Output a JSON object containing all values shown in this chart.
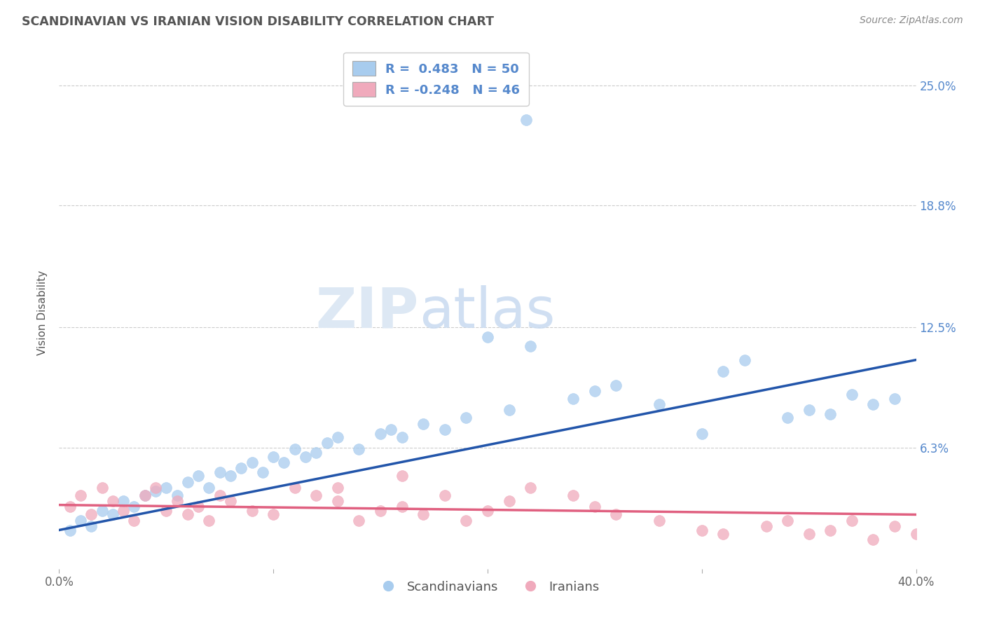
{
  "title": "SCANDINAVIAN VS IRANIAN VISION DISABILITY CORRELATION CHART",
  "source": "Source: ZipAtlas.com",
  "ylabel": "Vision Disability",
  "xlim": [
    0.0,
    0.4
  ],
  "ylim": [
    0.0,
    0.265
  ],
  "xticks": [
    0.0,
    0.1,
    0.2,
    0.3,
    0.4
  ],
  "xtick_labels": [
    "0.0%",
    "",
    "",
    "",
    "40.0%"
  ],
  "yticks_right": [
    0.0,
    0.0625,
    0.125,
    0.188,
    0.25
  ],
  "ytick_labels_right": [
    "",
    "6.3%",
    "12.5%",
    "18.8%",
    "25.0%"
  ],
  "blue_color": "#A8CCEE",
  "pink_color": "#F0AABC",
  "blue_line_color": "#2255AA",
  "pink_line_color": "#E06080",
  "R_blue": 0.483,
  "N_blue": 50,
  "R_pink": -0.248,
  "N_pink": 46,
  "legend_label_blue": "Scandinavians",
  "legend_label_pink": "Iranians",
  "watermark_zip": "ZIP",
  "watermark_atlas": "atlas",
  "background_color": "#ffffff",
  "grid_color": "#cccccc",
  "title_color": "#555555",
  "axis_label_color": "#5588cc",
  "blue_scatter_x": [
    0.005,
    0.01,
    0.015,
    0.02,
    0.025,
    0.03,
    0.035,
    0.04,
    0.045,
    0.05,
    0.055,
    0.06,
    0.065,
    0.07,
    0.075,
    0.08,
    0.085,
    0.09,
    0.095,
    0.1,
    0.105,
    0.11,
    0.115,
    0.12,
    0.125,
    0.13,
    0.14,
    0.15,
    0.155,
    0.16,
    0.17,
    0.18,
    0.19,
    0.2,
    0.21,
    0.22,
    0.24,
    0.25,
    0.26,
    0.28,
    0.3,
    0.31,
    0.32,
    0.34,
    0.35,
    0.36,
    0.37,
    0.38,
    0.39,
    0.218
  ],
  "blue_scatter_y": [
    0.02,
    0.025,
    0.022,
    0.03,
    0.028,
    0.035,
    0.032,
    0.038,
    0.04,
    0.042,
    0.038,
    0.045,
    0.048,
    0.042,
    0.05,
    0.048,
    0.052,
    0.055,
    0.05,
    0.058,
    0.055,
    0.062,
    0.058,
    0.06,
    0.065,
    0.068,
    0.062,
    0.07,
    0.072,
    0.068,
    0.075,
    0.072,
    0.078,
    0.12,
    0.082,
    0.115,
    0.088,
    0.092,
    0.095,
    0.085,
    0.07,
    0.102,
    0.108,
    0.078,
    0.082,
    0.08,
    0.09,
    0.085,
    0.088,
    0.232
  ],
  "pink_scatter_x": [
    0.005,
    0.01,
    0.015,
    0.02,
    0.025,
    0.03,
    0.035,
    0.04,
    0.045,
    0.05,
    0.055,
    0.06,
    0.065,
    0.07,
    0.075,
    0.08,
    0.09,
    0.1,
    0.11,
    0.12,
    0.13,
    0.14,
    0.15,
    0.16,
    0.17,
    0.18,
    0.19,
    0.2,
    0.21,
    0.22,
    0.24,
    0.25,
    0.26,
    0.28,
    0.3,
    0.31,
    0.33,
    0.34,
    0.35,
    0.36,
    0.37,
    0.38,
    0.39,
    0.4,
    0.13,
    0.16
  ],
  "pink_scatter_y": [
    0.032,
    0.038,
    0.028,
    0.042,
    0.035,
    0.03,
    0.025,
    0.038,
    0.042,
    0.03,
    0.035,
    0.028,
    0.032,
    0.025,
    0.038,
    0.035,
    0.03,
    0.028,
    0.042,
    0.038,
    0.035,
    0.025,
    0.03,
    0.032,
    0.028,
    0.038,
    0.025,
    0.03,
    0.035,
    0.042,
    0.038,
    0.032,
    0.028,
    0.025,
    0.02,
    0.018,
    0.022,
    0.025,
    0.018,
    0.02,
    0.025,
    0.015,
    0.022,
    0.018,
    0.042,
    0.048
  ],
  "blue_trend": [
    0.0,
    0.4,
    0.02,
    0.108
  ],
  "pink_trend": [
    0.0,
    0.4,
    0.033,
    0.028
  ]
}
